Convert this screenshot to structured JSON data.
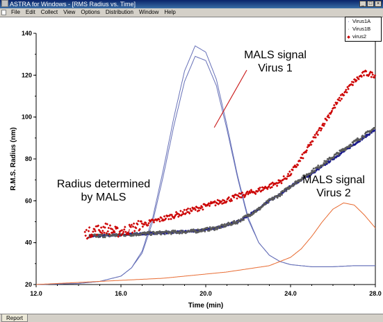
{
  "window": {
    "title": "ASTRA for Windows - [RMS Radius vs. Time]",
    "controls": {
      "minimize": "_",
      "maximize": "□",
      "close": "×"
    }
  },
  "menu": [
    "File",
    "Edit",
    "Collect",
    "View",
    "Options",
    "Distribution",
    "Window",
    "Help"
  ],
  "status": {
    "tab_label": "Report"
  },
  "annotations": {
    "mals1_line1": "MALS signal",
    "mals1_line2": "Virus 1",
    "radius_line1": "Radius determined",
    "radius_line2": "by MALS",
    "mals2_line1": "MALS signal",
    "mals2_line2": "Virus 2"
  },
  "legend": [
    {
      "name": "Virus1A",
      "marker": "·",
      "color": "#1a1a8c"
    },
    {
      "name": "Virus1B",
      "marker": "·",
      "color": "#555555"
    },
    {
      "name": "virus2",
      "marker": "◆",
      "color": "#cc0000"
    }
  ],
  "colors": {
    "virus1a": "#1a1a8c",
    "virus1b": "#5a5a5a",
    "virus2": "#cc0000",
    "mals1": "#6670b8",
    "mals2": "#e86a30",
    "callout": "#cc2222"
  },
  "chart_data": {
    "type": "scatter",
    "xlabel": "Time (min)",
    "ylabel": "R.M.S. Radius (nm)",
    "xlim": [
      12.0,
      28.0
    ],
    "ylim": [
      20,
      140
    ],
    "xticks": [
      "12.0",
      "16.0",
      "20.0",
      "24.0",
      "28.0"
    ],
    "yticks": [
      "20",
      "40",
      "60",
      "80",
      "100",
      "120",
      "140"
    ],
    "grid": false,
    "legend_position": "top-right",
    "series": [
      {
        "name": "Virus1A",
        "x": [
          14.5,
          15.5,
          16.5,
          17.5,
          18.5,
          19.5,
          20.5,
          21.5,
          22.0,
          22.5,
          23.0,
          23.5,
          24.0,
          25.0,
          26.0,
          27.0,
          28.0
        ],
        "y": [
          43,
          43.5,
          44,
          44.5,
          45,
          45.5,
          47,
          50,
          53,
          56,
          60,
          63,
          67,
          73,
          80,
          87,
          94
        ]
      },
      {
        "name": "Virus1B",
        "x": [
          14.5,
          15.5,
          16.5,
          17.5,
          18.5,
          19.5,
          20.5,
          21.5,
          22.0,
          22.5,
          23.0,
          23.5,
          24.0,
          25.0,
          26.0,
          27.0,
          28.0
        ],
        "y": [
          43,
          43.5,
          44,
          44.5,
          45,
          45.5,
          47,
          50,
          53,
          56,
          60,
          63,
          67,
          74,
          81,
          88,
          95
        ]
      },
      {
        "name": "virus2",
        "x": [
          14.3,
          14.8,
          15.3,
          15.8,
          16.3,
          16.8,
          17.5,
          18.5,
          19.5,
          20.5,
          21.5,
          22.5,
          23.5,
          24.0,
          24.5,
          25.0,
          25.5,
          26.0,
          26.5,
          27.0,
          27.5,
          28.0
        ],
        "y": [
          44,
          46,
          47,
          45,
          46,
          48,
          50,
          53,
          56,
          59,
          62,
          65,
          69,
          73,
          80,
          88,
          96,
          104,
          111,
          117,
          121,
          120
        ]
      }
    ],
    "signals": [
      {
        "name": "MALS signal Virus 1 (trace A)",
        "x": [
          12,
          14,
          15,
          16,
          16.5,
          17,
          17.5,
          18,
          18.5,
          19,
          19.5,
          20,
          20.5,
          21,
          21.5,
          22,
          22.5,
          23,
          23.5,
          24,
          24.5,
          25,
          26,
          27,
          28
        ],
        "y": [
          20,
          20.5,
          21.5,
          24,
          28,
          36,
          52,
          75,
          100,
          122,
          134,
          131,
          118,
          96,
          72,
          52,
          40,
          34,
          31,
          29.5,
          29,
          28.5,
          28.5,
          29,
          29
        ]
      },
      {
        "name": "MALS signal Virus 1 (trace B)",
        "x": [
          12,
          14,
          15,
          16,
          16.5,
          17,
          17.5,
          18,
          18.5,
          19,
          19.5,
          20,
          20.5,
          21,
          21.5,
          22,
          22.5,
          23,
          23.5,
          24,
          24.5,
          25,
          26,
          27,
          28
        ],
        "y": [
          20,
          20.5,
          21.5,
          24,
          28,
          35,
          50,
          72,
          96,
          117,
          129,
          127,
          115,
          94,
          71,
          51,
          40,
          34,
          31,
          29.5,
          29,
          28.5,
          28.5,
          29,
          29
        ]
      },
      {
        "name": "MALS signal Virus 2",
        "x": [
          12,
          14,
          16,
          18,
          19,
          20,
          21,
          22,
          23,
          24,
          24.5,
          25,
          25.5,
          26,
          26.5,
          27,
          27.5,
          28
        ],
        "y": [
          20,
          21,
          22,
          23,
          24,
          25,
          26,
          27.5,
          29,
          33,
          37,
          43,
          50,
          56,
          59,
          58,
          53,
          47
        ]
      }
    ]
  }
}
